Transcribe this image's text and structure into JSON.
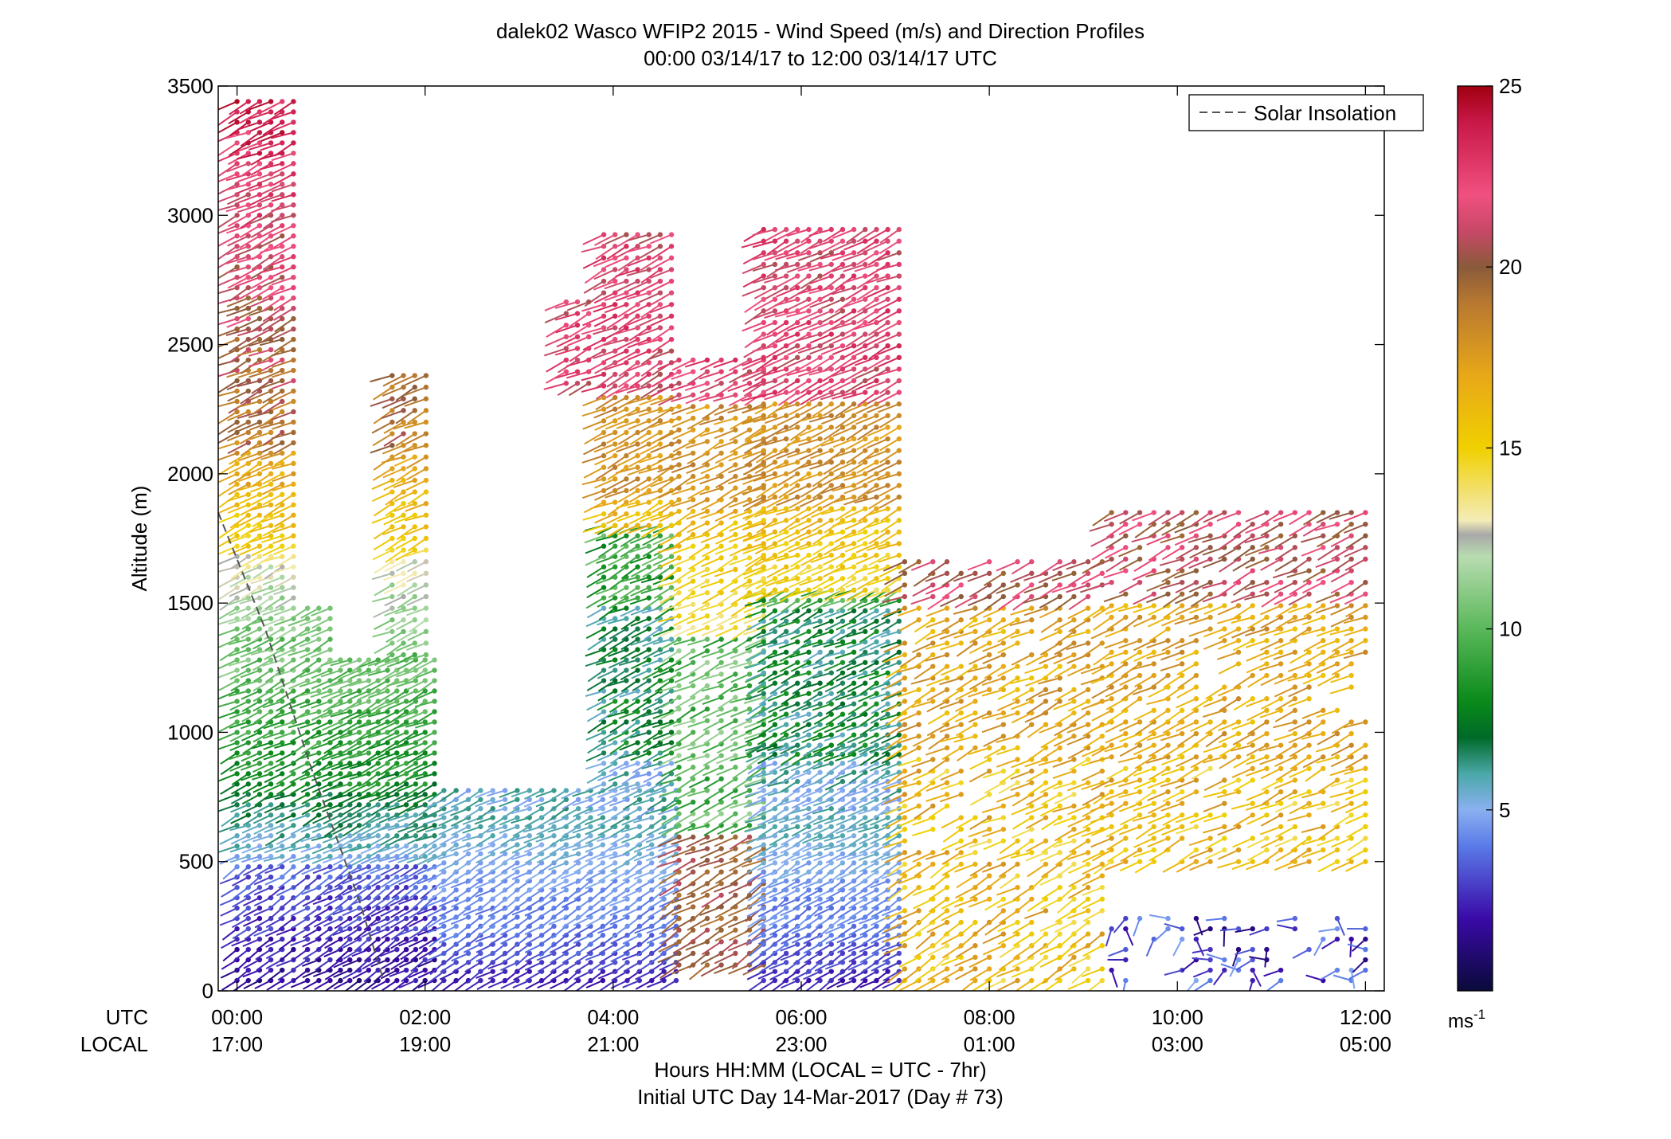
{
  "chart_data": {
    "type": "wind-barb-profile",
    "title": "dalek02 Wasco WFIP2 2015 - Wind Speed (m/s) and Direction Profiles",
    "subtitle": "00:00 03/14/17 to 12:00 03/14/17  UTC",
    "ylabel": "Altitude (m)",
    "xlabel": "Hours HH:MM  (LOCAL = UTC - 7hr)",
    "xlabel2": "Initial UTC Day 14-Mar-2017 (Day # 73)",
    "utc_label": "UTC",
    "local_label": "LOCAL",
    "ylim": [
      0,
      3500
    ],
    "xlim_hours": [
      -0.2,
      12.2
    ],
    "y_ticks": [
      0,
      500,
      1000,
      1500,
      2000,
      2500,
      3000,
      3500
    ],
    "y_tick_labels": [
      "0",
      "500",
      "1000",
      "1500",
      "2000",
      "2500",
      "3000",
      "3500"
    ],
    "x_ticks": [
      0,
      2,
      4,
      6,
      8,
      10,
      12
    ],
    "utc_tick_labels": [
      "00:00",
      "02:00",
      "04:00",
      "06:00",
      "08:00",
      "10:00",
      "12:00"
    ],
    "local_tick_labels": [
      "17:00",
      "19:00",
      "21:00",
      "23:00",
      "01:00",
      "03:00",
      "05:00"
    ],
    "legend": {
      "entries": [
        "Solar Insolation"
      ],
      "placement": "top-right"
    },
    "solar_insolation": {
      "x": [
        -0.2,
        0.3,
        0.8,
        1.3,
        1.55
      ],
      "y": [
        1850,
        1400,
        850,
        350,
        50
      ]
    },
    "colorbar": {
      "range": [
        0,
        25
      ],
      "unit": "ms",
      "unit_exp": "-1",
      "ticks": [
        5,
        10,
        15,
        20,
        25
      ],
      "tick_labels": [
        "5",
        "10",
        "15",
        "20",
        "25"
      ],
      "stops": [
        {
          "v": 0,
          "c": "#0a0a3a"
        },
        {
          "v": 2,
          "c": "#3a0aa8"
        },
        {
          "v": 4,
          "c": "#5a7ae8"
        },
        {
          "v": 5,
          "c": "#8ab0f0"
        },
        {
          "v": 6,
          "c": "#4aa8a8"
        },
        {
          "v": 7,
          "c": "#006a28"
        },
        {
          "v": 8,
          "c": "#0a8a1a"
        },
        {
          "v": 10,
          "c": "#5ab85a"
        },
        {
          "v": 12,
          "c": "#b8dcb0"
        },
        {
          "v": 12.6,
          "c": "#a8a8a8"
        },
        {
          "v": 13,
          "c": "#f4ecb8"
        },
        {
          "v": 15,
          "c": "#f0d000"
        },
        {
          "v": 17,
          "c": "#e8a818"
        },
        {
          "v": 19,
          "c": "#b87830"
        },
        {
          "v": 20,
          "c": "#8a5a3a"
        },
        {
          "v": 21,
          "c": "#c84868"
        },
        {
          "v": 22,
          "c": "#f05080"
        },
        {
          "v": 24,
          "c": "#c81848"
        },
        {
          "v": 25,
          "c": "#a00010"
        }
      ]
    },
    "blocks": [
      {
        "t0": 0,
        "t1": 0.7,
        "h0": 40,
        "h1": 3450,
        "dt": 0.12,
        "dh": 40,
        "skip": [],
        "regime": "w1"
      },
      {
        "t0": 0.75,
        "t1": 1.1,
        "h0": 40,
        "h1": 1500,
        "dt": 0.12,
        "dh": 40,
        "regime": "w1"
      },
      {
        "t0": 1.1,
        "t1": 2.1,
        "h0": 40,
        "h1": 1300,
        "dt": 0.1,
        "dh": 40,
        "regime": "w1"
      },
      {
        "t0": 1.65,
        "t1": 2.1,
        "h0": 1300,
        "h1": 2400,
        "dt": 0.12,
        "dh": 45,
        "regime": "w1"
      },
      {
        "t0": 2.2,
        "t1": 4.7,
        "h0": 40,
        "h1": 800,
        "dt": 0.13,
        "dh": 35,
        "regime": "w2"
      },
      {
        "t0": 3.9,
        "t1": 4.7,
        "h0": 800,
        "h1": 1800,
        "dt": 0.12,
        "dh": 40,
        "regime": "w2"
      },
      {
        "t0": 3.9,
        "t1": 4.7,
        "h0": 1800,
        "h1": 2950,
        "dt": 0.12,
        "dh": 45,
        "regime": "w3"
      },
      {
        "t0": 3.5,
        "t1": 3.8,
        "h0": 2350,
        "h1": 2700,
        "dt": 0.12,
        "dh": 45,
        "regime": "w3"
      },
      {
        "t0": 4.7,
        "t1": 5.6,
        "h0": 100,
        "h1": 2450,
        "dt": 0.15,
        "dh": 45,
        "regime": "w3"
      },
      {
        "t0": 5.6,
        "t1": 7.1,
        "h0": 40,
        "h1": 950,
        "dt": 0.12,
        "dh": 35,
        "regime": "w2"
      },
      {
        "t0": 5.6,
        "t1": 7.1,
        "h0": 950,
        "h1": 1550,
        "dt": 0.12,
        "dh": 40,
        "regime": "w2"
      },
      {
        "t0": 5.6,
        "t1": 7.1,
        "h0": 1550,
        "h1": 2950,
        "dt": 0.12,
        "dh": 45,
        "regime": "w3"
      },
      {
        "t0": 7.1,
        "t1": 9.3,
        "h0": 40,
        "h1": 1700,
        "dt": 0.15,
        "dh": 45,
        "regime": "w4"
      },
      {
        "t0": 9.3,
        "t1": 12.0,
        "h0": 500,
        "h1": 1850,
        "dt": 0.15,
        "dh": 45,
        "regime": "w4"
      },
      {
        "t0": 9.3,
        "t1": 12.0,
        "h0": 40,
        "h1": 300,
        "dt": 0.15,
        "dh": 40,
        "regime": "w5"
      }
    ]
  }
}
